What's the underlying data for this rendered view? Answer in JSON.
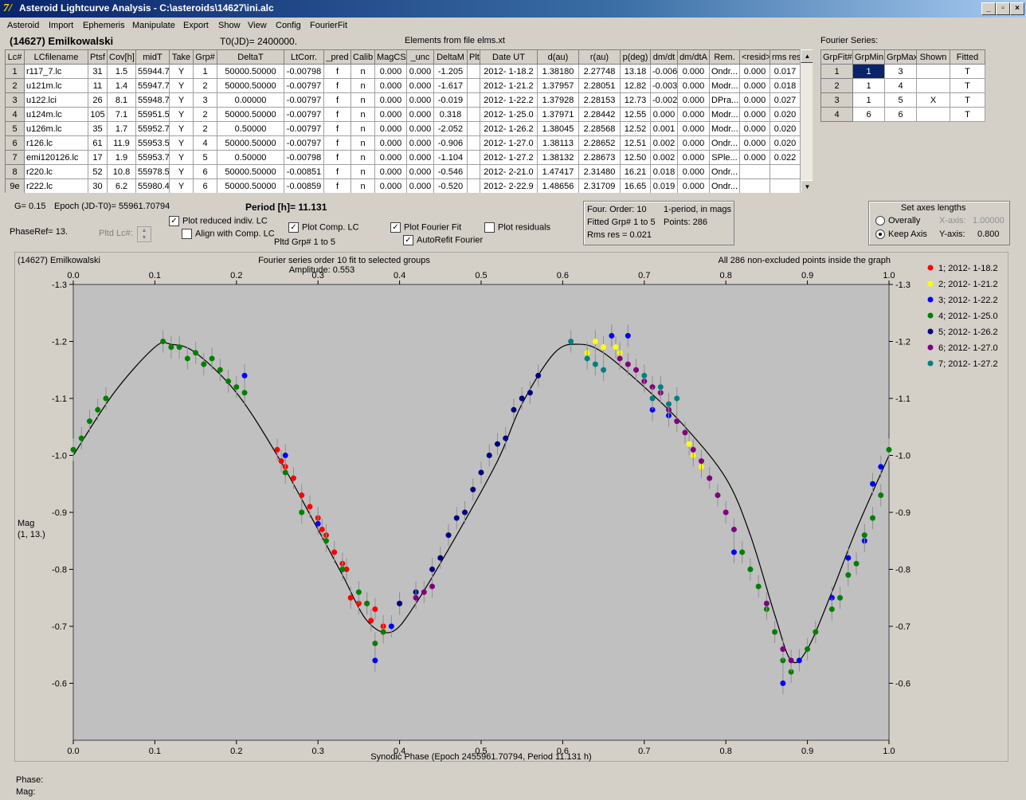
{
  "window": {
    "title": "Asteroid Lightcurve Analysis - C:\\asteroids\\14627\\ini.alc",
    "app_icon": "7/",
    "min": "_",
    "max": "▫",
    "close": "×"
  },
  "menu": [
    "Asteroid",
    "Import",
    "Ephemeris",
    "Manipulate",
    "Export",
    "Show",
    "View",
    "Config",
    "FourierFit"
  ],
  "header": {
    "asteroid": "(14627) Emilkowalski",
    "t0": "T0(JD)= 2400000.",
    "elements": "Elements from file elms.xt"
  },
  "lc_table": {
    "columns": [
      "Lc#",
      "LCfilename",
      "Ptsf",
      "Cov[h]",
      "midT",
      "Take",
      "Grp#",
      "DeltaT",
      "LtCorr.",
      "_pred",
      "Calib",
      "MagCS",
      "_unc",
      "DeltaM",
      "Plt",
      "Date UT",
      "d(au)",
      "r(au)",
      "p(deg)",
      "dm/dt",
      "dm/dtA",
      "Rem.",
      "<resid>",
      "rms res"
    ],
    "rows": [
      [
        "1",
        "r117_7.lc",
        "31",
        "1.5",
        "55944.7",
        "Y",
        "1",
        "50000.50000",
        "-0.00798",
        "f",
        "n",
        "0.000",
        "0.000",
        "-1.205",
        "",
        "2012- 1-18.2",
        "1.38180",
        "2.27748",
        "13.18",
        "-0.006",
        "0.000",
        "Ondr...",
        "0.000",
        "0.017"
      ],
      [
        "2",
        "u121m.lc",
        "11",
        "1.4",
        "55947.7",
        "Y",
        "2",
        "50000.50000",
        "-0.00797",
        "f",
        "n",
        "0.000",
        "0.000",
        "-1.617",
        "",
        "2012- 1-21.2",
        "1.37957",
        "2.28051",
        "12.82",
        "-0.003",
        "0.000",
        "Modr...",
        "0.000",
        "0.018"
      ],
      [
        "3",
        "u122.lci",
        "26",
        "8.1",
        "55948.7",
        "Y",
        "3",
        "0.00000",
        "-0.00797",
        "f",
        "n",
        "0.000",
        "0.000",
        "-0.019",
        "",
        "2012- 1-22.2",
        "1.37928",
        "2.28153",
        "12.73",
        "-0.002",
        "0.000",
        "DPra...",
        "0.000",
        "0.027"
      ],
      [
        "4",
        "u124m.lc",
        "105",
        "7.1",
        "55951.5",
        "Y",
        "2",
        "50000.50000",
        "-0.00797",
        "f",
        "n",
        "0.000",
        "0.000",
        "0.318",
        "",
        "2012- 1-25.0",
        "1.37971",
        "2.28442",
        "12.55",
        "0.000",
        "0.000",
        "Modr...",
        "0.000",
        "0.020"
      ],
      [
        "5",
        "u126m.lc",
        "35",
        "1.7",
        "55952.7",
        "Y",
        "2",
        "0.50000",
        "-0.00797",
        "f",
        "n",
        "0.000",
        "0.000",
        "-2.052",
        "",
        "2012- 1-26.2",
        "1.38045",
        "2.28568",
        "12.52",
        "0.001",
        "0.000",
        "Modr...",
        "0.000",
        "0.020"
      ],
      [
        "6",
        "r126.lc",
        "61",
        "11.9",
        "55953.5",
        "Y",
        "4",
        "50000.50000",
        "-0.00797",
        "f",
        "n",
        "0.000",
        "0.000",
        "-0.906",
        "",
        "2012- 1-27.0",
        "1.38113",
        "2.28652",
        "12.51",
        "0.002",
        "0.000",
        "Ondr...",
        "0.000",
        "0.020"
      ],
      [
        "7",
        "emi120126.lc",
        "17",
        "1.9",
        "55953.7",
        "Y",
        "5",
        "0.50000",
        "-0.00798",
        "f",
        "n",
        "0.000",
        "0.000",
        "-1.104",
        "",
        "2012- 1-27.2",
        "1.38132",
        "2.28673",
        "12.50",
        "0.002",
        "0.000",
        "SPle...",
        "0.000",
        "0.022"
      ],
      [
        "8",
        "r220.lc",
        "52",
        "10.8",
        "55978.5",
        "Y",
        "6",
        "50000.50000",
        "-0.00851",
        "f",
        "n",
        "0.000",
        "0.000",
        "-0.546",
        "",
        "2012- 2-21.0",
        "1.47417",
        "2.31480",
        "16.21",
        "0.018",
        "0.000",
        "Ondr...",
        "",
        ""
      ],
      [
        "9e",
        "r222.lc",
        "30",
        "6.2",
        "55980.4",
        "Y",
        "6",
        "50000.50000",
        "-0.00859",
        "f",
        "n",
        "0.000",
        "0.000",
        "-0.520",
        "",
        "2012- 2-22.9",
        "1.48656",
        "2.31709",
        "16.65",
        "0.019",
        "0.000",
        "Ondr...",
        "",
        ""
      ]
    ]
  },
  "fourier_table": {
    "title": "Fourier Series:",
    "columns": [
      "GrpFit#",
      "GrpMin",
      "GrpMax",
      "Shown",
      "Fitted"
    ],
    "rows": [
      [
        "1",
        "1",
        "3",
        "",
        "T"
      ],
      [
        "2",
        "1",
        "4",
        "",
        "T"
      ],
      [
        "3",
        "1",
        "5",
        "X",
        "T"
      ],
      [
        "4",
        "6",
        "6",
        "",
        "T"
      ]
    ]
  },
  "controls": {
    "g": "G= 0.15",
    "epoch": "Epoch (JD-T0)= 55961.70794",
    "period": "Period [h]= 11.131",
    "phaseref": "PhaseRef= 13.",
    "pltd_lc": "Pltd Lc#:",
    "plot_reduced": "Plot reduced indiv. LC",
    "align_comp": "Align with Comp. LC",
    "plot_comp": "Plot Comp. LC",
    "pltd_grp": "Pltd Grp#  1  to  5",
    "plot_fourier": "Plot Fourier Fit",
    "autorefit": "AutoRefit Fourier",
    "plot_residuals": "Plot residuals"
  },
  "fit_info": {
    "order": "Four. Order: 10",
    "period_note": "1-period, in mags",
    "fitted": "Fitted Grp# 1 to 5",
    "points": "Points: 286",
    "rms": "Rms res    = 0.021"
  },
  "axes_box": {
    "title": "Set axes lengths",
    "overally": "Overally",
    "keep": "Keep Axis",
    "xaxis_label": "X-axis:",
    "xaxis_val": "1.00000",
    "yaxis_label": "Y-axis:",
    "yaxis_val": "0.800"
  },
  "chart_data": {
    "type": "scatter",
    "title_left": "(14627) Emilkowalski",
    "title_center": "Fourier series order 10 fit to selected groups",
    "amplitude": "Amplitude: 0.553",
    "title_right": "All 286 non-excluded points inside the graph",
    "xlabel": "Synodic Phase (Epoch 2455961.70794, Period 11.131 h)",
    "ylabel": "Mag",
    "ylabel2": "(1, 13.)",
    "xlim": [
      0.0,
      1.0
    ],
    "ylim": [
      -0.5,
      -1.3
    ],
    "x_ticks": [
      "0.0",
      "0.1",
      "0.2",
      "0.3",
      "0.4",
      "0.5",
      "0.6",
      "0.7",
      "0.8",
      "0.9",
      "1.0"
    ],
    "y_ticks": [
      "-1.3",
      "-1.2",
      "-1.1",
      "-1.0",
      "-0.9",
      "-0.8",
      "-0.7",
      "-0.6"
    ],
    "y_tick_values": [
      -1.3,
      -1.2,
      -1.1,
      -1.0,
      -0.9,
      -0.8,
      -0.7,
      -0.6
    ],
    "fourier_curve": [
      [
        0.0,
        -1.0
      ],
      [
        0.05,
        -1.11
      ],
      [
        0.1,
        -1.19
      ],
      [
        0.12,
        -1.195
      ],
      [
        0.15,
        -1.18
      ],
      [
        0.2,
        -1.11
      ],
      [
        0.25,
        -1.0
      ],
      [
        0.3,
        -0.87
      ],
      [
        0.33,
        -0.79
      ],
      [
        0.36,
        -0.71
      ],
      [
        0.39,
        -0.69
      ],
      [
        0.42,
        -0.74
      ],
      [
        0.47,
        -0.86
      ],
      [
        0.52,
        -0.99
      ],
      [
        0.55,
        -1.09
      ],
      [
        0.59,
        -1.18
      ],
      [
        0.62,
        -1.195
      ],
      [
        0.65,
        -1.18
      ],
      [
        0.7,
        -1.12
      ],
      [
        0.75,
        -1.05
      ],
      [
        0.8,
        -0.96
      ],
      [
        0.83,
        -0.86
      ],
      [
        0.86,
        -0.72
      ],
      [
        0.88,
        -0.64
      ],
      [
        0.9,
        -0.66
      ],
      [
        0.93,
        -0.76
      ],
      [
        0.96,
        -0.87
      ],
      [
        1.0,
        -1.0
      ]
    ],
    "series": [
      {
        "name": "1; 2012- 1-18.2",
        "color": "#ff0000",
        "points": [
          [
            0.25,
            -1.01
          ],
          [
            0.26,
            -0.98
          ],
          [
            0.27,
            -0.96
          ],
          [
            0.28,
            -0.93
          ],
          [
            0.29,
            -0.91
          ],
          [
            0.3,
            -0.89
          ],
          [
            0.31,
            -0.86
          ],
          [
            0.32,
            -0.83
          ],
          [
            0.33,
            -0.81
          ],
          [
            0.34,
            -0.75
          ],
          [
            0.35,
            -0.74
          ],
          [
            0.36,
            -0.74
          ],
          [
            0.37,
            -0.73
          ],
          [
            0.38,
            -0.7
          ],
          [
            0.255,
            -0.99
          ],
          [
            0.305,
            -0.87
          ],
          [
            0.335,
            -0.8
          ],
          [
            0.365,
            -0.71
          ]
        ]
      },
      {
        "name": "2; 2012- 1-21.2",
        "color": "#ffff00",
        "points": [
          [
            0.63,
            -1.18
          ],
          [
            0.64,
            -1.2
          ],
          [
            0.65,
            -1.19
          ],
          [
            0.66,
            -1.21
          ],
          [
            0.665,
            -1.19
          ],
          [
            0.67,
            -1.18
          ],
          [
            0.755,
            -1.02
          ],
          [
            0.76,
            -1.0
          ],
          [
            0.77,
            -0.98
          ]
        ]
      },
      {
        "name": "3; 2012- 1-22.2",
        "color": "#0000ff",
        "points": [
          [
            0.21,
            -1.14
          ],
          [
            0.26,
            -1.0
          ],
          [
            0.3,
            -0.88
          ],
          [
            0.37,
            -0.64
          ],
          [
            0.39,
            -0.7
          ],
          [
            0.4,
            -0.74
          ],
          [
            0.66,
            -1.21
          ],
          [
            0.68,
            -1.21
          ],
          [
            0.71,
            -1.08
          ],
          [
            0.73,
            -1.07
          ],
          [
            0.81,
            -0.83
          ],
          [
            0.87,
            -0.6
          ],
          [
            0.89,
            -0.64
          ],
          [
            0.93,
            -0.75
          ],
          [
            0.95,
            -0.82
          ],
          [
            0.97,
            -0.85
          ],
          [
            0.98,
            -0.95
          ],
          [
            0.99,
            -0.98
          ]
        ]
      },
      {
        "name": "4; 2012- 1-25.0",
        "color": "#008000",
        "points": [
          [
            0.0,
            -1.01
          ],
          [
            0.01,
            -1.03
          ],
          [
            0.02,
            -1.06
          ],
          [
            0.03,
            -1.08
          ],
          [
            0.04,
            -1.1
          ],
          [
            0.11,
            -1.2
          ],
          [
            0.12,
            -1.19
          ],
          [
            0.13,
            -1.19
          ],
          [
            0.14,
            -1.17
          ],
          [
            0.15,
            -1.18
          ],
          [
            0.16,
            -1.16
          ],
          [
            0.17,
            -1.17
          ],
          [
            0.18,
            -1.15
          ],
          [
            0.19,
            -1.13
          ],
          [
            0.2,
            -1.12
          ],
          [
            0.21,
            -1.11
          ],
          [
            0.26,
            -0.97
          ],
          [
            0.28,
            -0.9
          ],
          [
            0.31,
            -0.85
          ],
          [
            0.33,
            -0.8
          ],
          [
            0.35,
            -0.76
          ],
          [
            0.36,
            -0.74
          ],
          [
            0.37,
            -0.67
          ],
          [
            0.38,
            -0.69
          ],
          [
            0.82,
            -0.83
          ],
          [
            0.83,
            -0.8
          ],
          [
            0.84,
            -0.77
          ],
          [
            0.85,
            -0.73
          ],
          [
            0.86,
            -0.69
          ],
          [
            0.87,
            -0.64
          ],
          [
            0.88,
            -0.62
          ],
          [
            0.9,
            -0.66
          ],
          [
            0.91,
            -0.69
          ],
          [
            0.93,
            -0.73
          ],
          [
            0.94,
            -0.75
          ],
          [
            0.95,
            -0.79
          ],
          [
            0.96,
            -0.81
          ],
          [
            0.97,
            -0.86
          ],
          [
            0.98,
            -0.89
          ],
          [
            0.99,
            -0.93
          ],
          [
            1.0,
            -1.01
          ]
        ]
      },
      {
        "name": "5; 2012- 1-26.2",
        "color": "#000080",
        "points": [
          [
            0.4,
            -0.74
          ],
          [
            0.42,
            -0.76
          ],
          [
            0.44,
            -0.8
          ],
          [
            0.45,
            -0.82
          ],
          [
            0.46,
            -0.86
          ],
          [
            0.47,
            -0.89
          ],
          [
            0.48,
            -0.9
          ],
          [
            0.49,
            -0.94
          ],
          [
            0.5,
            -0.97
          ],
          [
            0.51,
            -1.0
          ],
          [
            0.52,
            -1.02
          ],
          [
            0.53,
            -1.03
          ],
          [
            0.54,
            -1.08
          ],
          [
            0.55,
            -1.1
          ],
          [
            0.56,
            -1.11
          ],
          [
            0.57,
            -1.14
          ]
        ]
      },
      {
        "name": "6; 2012- 1-27.0",
        "color": "#800080",
        "points": [
          [
            0.42,
            -0.75
          ],
          [
            0.43,
            -0.76
          ],
          [
            0.44,
            -0.77
          ],
          [
            0.67,
            -1.17
          ],
          [
            0.68,
            -1.16
          ],
          [
            0.69,
            -1.15
          ],
          [
            0.7,
            -1.13
          ],
          [
            0.71,
            -1.12
          ],
          [
            0.72,
            -1.11
          ],
          [
            0.73,
            -1.08
          ],
          [
            0.74,
            -1.06
          ],
          [
            0.75,
            -1.04
          ],
          [
            0.76,
            -1.01
          ],
          [
            0.77,
            -0.99
          ],
          [
            0.78,
            -0.96
          ],
          [
            0.79,
            -0.93
          ],
          [
            0.8,
            -0.9
          ],
          [
            0.81,
            -0.87
          ],
          [
            0.85,
            -0.74
          ],
          [
            0.87,
            -0.66
          ],
          [
            0.88,
            -0.64
          ]
        ]
      },
      {
        "name": "7; 2012- 1-27.2",
        "color": "#008080",
        "points": [
          [
            0.61,
            -1.2
          ],
          [
            0.63,
            -1.17
          ],
          [
            0.64,
            -1.16
          ],
          [
            0.65,
            -1.15
          ],
          [
            0.7,
            -1.14
          ],
          [
            0.71,
            -1.1
          ],
          [
            0.72,
            -1.12
          ],
          [
            0.73,
            -1.09
          ],
          [
            0.74,
            -1.1
          ]
        ]
      }
    ]
  },
  "status": {
    "phase": "Phase:",
    "mag": "Mag:"
  }
}
